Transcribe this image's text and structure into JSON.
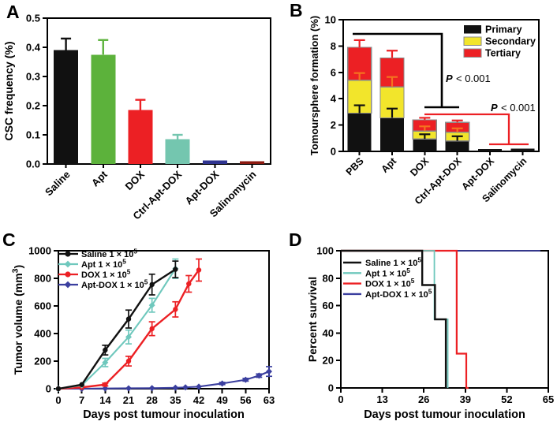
{
  "background": "#ffffff",
  "panels": [
    {
      "letter": "A"
    },
    {
      "letter": "B"
    },
    {
      "letter": "C"
    },
    {
      "letter": "D"
    }
  ],
  "chart_data": [
    {
      "id": "A",
      "type": "bar",
      "ylabel": "CSC frequency (%)",
      "ylim": [
        0,
        0.5
      ],
      "ytick_vals": [
        0,
        0.1,
        0.2,
        0.3,
        0.4,
        0.5
      ],
      "ytick_labels": [
        "0.0",
        "0.1",
        "0.2",
        "0.3",
        "0.4",
        "0.5"
      ],
      "categories": [
        "Saline",
        "Apt",
        "DOX",
        "Ctrl-Apt-DOX",
        "Apt-DOX",
        "Salinomycin"
      ],
      "values": [
        0.39,
        0.375,
        0.185,
        0.085,
        0.012,
        0.01
      ],
      "errors": [
        0.04,
        0.05,
        0.035,
        0.015,
        0.004,
        0.003
      ],
      "bar_colors": [
        "#111111",
        "#5CB23B",
        "#EC2024",
        "#74C6AF",
        "#2F3490",
        "#8C1A10"
      ]
    },
    {
      "id": "B",
      "type": "stacked-bar",
      "ylabel": "Tomoursphere formation (%)",
      "ylim": [
        0,
        10
      ],
      "ytick_vals": [
        0,
        2,
        4,
        6,
        8,
        10
      ],
      "ytick_labels": [
        "0",
        "2",
        "4",
        "6",
        "8",
        "10"
      ],
      "categories": [
        "PBS",
        "Apt",
        "DOX",
        "Ctrl-Apt-DOX",
        "Apt-DOX",
        "Salinomycin"
      ],
      "series": [
        {
          "name": "Primary",
          "color": "#111111",
          "error_color": "#111111",
          "values": [
            2.9,
            2.55,
            0.95,
            0.8,
            0.18,
            0.2
          ],
          "errors": [
            0.6,
            0.7,
            0.35,
            0.35,
            0,
            0
          ]
        },
        {
          "name": "Secondary",
          "color": "#F2E52B",
          "error_color": "#F4731F",
          "values": [
            2.5,
            2.35,
            0.6,
            0.65,
            0,
            0
          ],
          "errors": [
            0.55,
            0.75,
            0.35,
            0.3,
            0,
            0
          ]
        },
        {
          "name": "Tertiary",
          "color": "#EC2024",
          "error_color": "#EC2024",
          "values": [
            2.5,
            2.2,
            0.85,
            0.75,
            0,
            0
          ],
          "errors": [
            0.55,
            0.55,
            0.15,
            0.15,
            0,
            0
          ]
        }
      ],
      "legend": [
        "Primary",
        "Secondary",
        "Tertiary"
      ],
      "legend_position": "top-right",
      "annotations": [
        {
          "text": "P < 0.001"
        },
        {
          "text": "P < 0.001"
        }
      ]
    },
    {
      "id": "C",
      "type": "line",
      "ylabel": "Tumor volume (mm³)",
      "xlabel": "Days post tumour inoculation",
      "ylim": [
        0,
        1000
      ],
      "xlim": [
        0,
        63
      ],
      "ytick_vals": [
        0,
        200,
        400,
        600,
        800,
        1000
      ],
      "xtick_vals": [
        0,
        7,
        14,
        21,
        28,
        35,
        42,
        49,
        56,
        63
      ],
      "legend_position": "top-left",
      "series": [
        {
          "name": "Saline 1 × 10⁵",
          "color": "#111111",
          "marker": "circle",
          "x": [
            0,
            7,
            14,
            21,
            28,
            35
          ],
          "y": [
            0,
            30,
            280,
            505,
            755,
            865
          ],
          "err": [
            0,
            0,
            35,
            65,
            75,
            60
          ]
        },
        {
          "name": "Apt 1 × 10⁵",
          "color": "#6FC8BD",
          "marker": "diamond",
          "x": [
            0,
            7,
            14,
            21,
            28,
            35
          ],
          "y": [
            0,
            25,
            190,
            375,
            605,
            870
          ],
          "err": [
            0,
            0,
            30,
            50,
            50,
            70
          ]
        },
        {
          "name": "DOX 1 × 10⁵",
          "color": "#EC2024",
          "marker": "circle",
          "x": [
            0,
            7,
            14,
            21,
            28,
            35,
            39,
            42
          ],
          "y": [
            0,
            10,
            30,
            200,
            435,
            575,
            760,
            860
          ],
          "err": [
            0,
            0,
            10,
            35,
            50,
            55,
            60,
            80
          ]
        },
        {
          "name": "Apt-DOX 1 × 10⁵",
          "color": "#3B3F9F",
          "marker": "diamond",
          "x": [
            0,
            7,
            14,
            21,
            28,
            35,
            38,
            42,
            49,
            56,
            60,
            63
          ],
          "y": [
            0,
            0,
            2,
            3,
            4,
            7,
            10,
            15,
            38,
            65,
            95,
            125
          ],
          "err": [
            0,
            0,
            0,
            0,
            0,
            0,
            0,
            0,
            8,
            10,
            12,
            35
          ]
        }
      ]
    },
    {
      "id": "D",
      "type": "step",
      "ylabel": "Percent survival",
      "xlabel": "Days post tumour inoculation",
      "ylim": [
        0,
        100
      ],
      "xlim": [
        0,
        65
      ],
      "ytick_vals": [
        0,
        20,
        40,
        60,
        80,
        100
      ],
      "xtick_vals": [
        0,
        13,
        26,
        39,
        52,
        65
      ],
      "legend_position": "top-left",
      "series": [
        {
          "name": "Saline 1 × 10⁵",
          "color": "#111111",
          "points": [
            [
              0,
              100
            ],
            [
              25.5,
              100
            ],
            [
              25.5,
              75
            ],
            [
              29.5,
              75
            ],
            [
              29.5,
              50
            ],
            [
              32.9,
              50
            ],
            [
              32.9,
              0
            ]
          ]
        },
        {
          "name": "Apt 1 × 10⁵",
          "color": "#6FC8BD",
          "points": [
            [
              0,
              100
            ],
            [
              29.3,
              100
            ],
            [
              29.3,
              50
            ],
            [
              33.5,
              50
            ],
            [
              33.5,
              0
            ]
          ]
        },
        {
          "name": "DOX 1 × 10⁵",
          "color": "#EC2024",
          "points": [
            [
              0,
              100
            ],
            [
              36.3,
              100
            ],
            [
              36.3,
              25
            ],
            [
              39.3,
              25
            ],
            [
              39.3,
              0
            ],
            [
              40,
              0
            ]
          ]
        },
        {
          "name": "Apt-DOX 1 × 10⁵",
          "color": "#3B3F9F",
          "points": [
            [
              0,
              100
            ],
            [
              62.5,
              100
            ]
          ]
        }
      ]
    }
  ]
}
